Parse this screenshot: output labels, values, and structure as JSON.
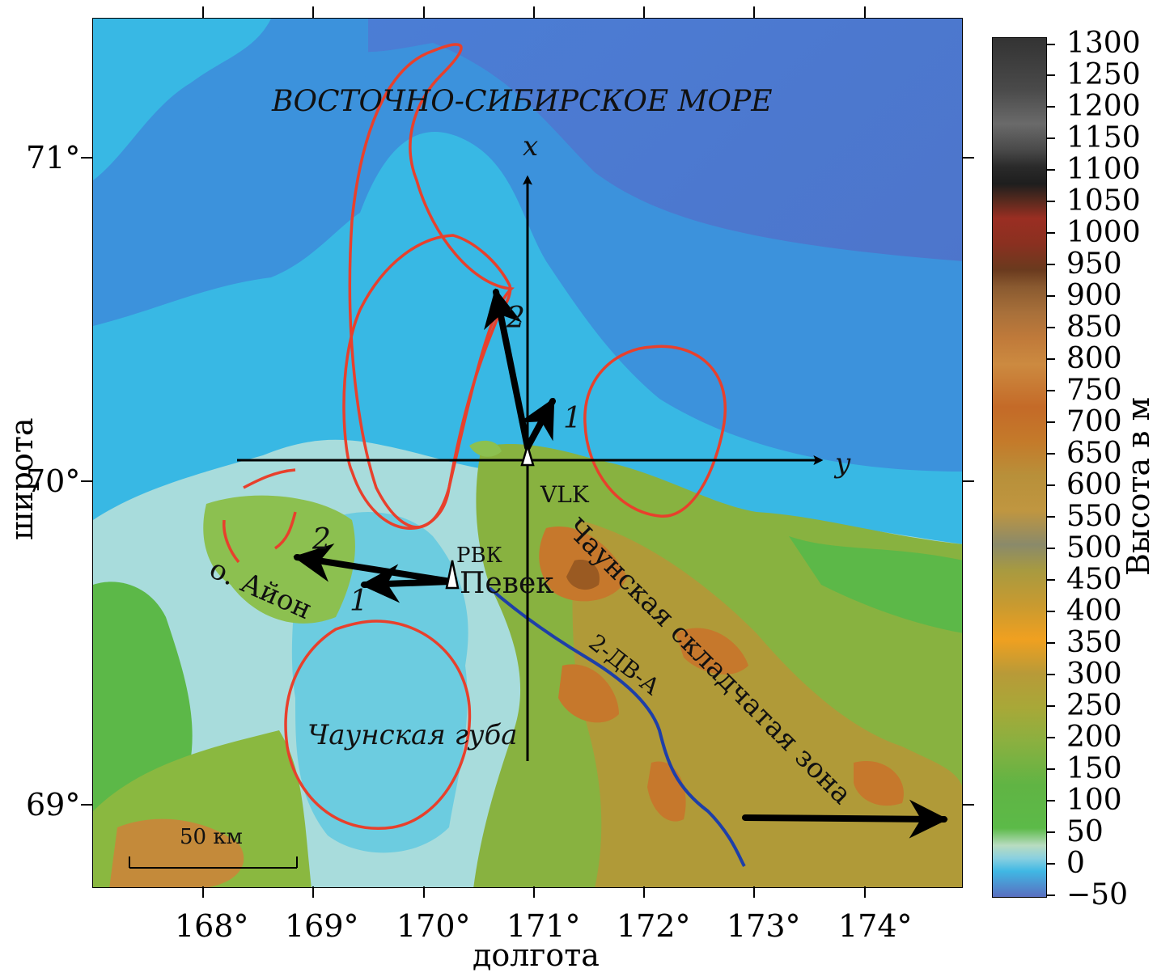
{
  "map": {
    "sea_label": "ВОСТОЧНО-СИБИРСКОЕ МОРЕ",
    "bay_label": "Чаунская губа",
    "island_label": "о. Айон",
    "fold_zone_label": "Чаунская складчатая зона",
    "city_label": "Певек",
    "station_labels": [
      "РВК",
      "VLK"
    ],
    "profile_label": "2-ДВ-А",
    "axis_x_label": "x",
    "axis_y_label": "y",
    "arrow_labels": [
      "1",
      "2",
      "1",
      "2"
    ],
    "scale_label": "50 км",
    "x_ticks": [
      "168°",
      "169°",
      "170°",
      "171°",
      "172°",
      "173°",
      "174°"
    ],
    "y_ticks": [
      "71°",
      "70°",
      "69°"
    ],
    "xlabel": "долгота",
    "ylabel": "широта"
  },
  "colorbar": {
    "title": "Высота в м",
    "labels": [
      "1300",
      "1250",
      "1200",
      "1150",
      "1100",
      "1050",
      "1000",
      "950",
      "900",
      "850",
      "800",
      "750",
      "700",
      "650",
      "600",
      "550",
      "500",
      "450",
      "400",
      "350",
      "300",
      "250",
      "200",
      "150",
      "100",
      "50",
      "0",
      "−50"
    ]
  },
  "colors": {
    "deep_sea": "#5a6fc0",
    "sea": "#3f8fdc",
    "shelf": "#40b8e0",
    "shallow": "#a8dde0",
    "lowland": "#5cb848",
    "upland": "#b8a43c",
    "mountain": "#d08a30",
    "contour": "#e8402c",
    "profile_line": "#1e3fa8"
  }
}
